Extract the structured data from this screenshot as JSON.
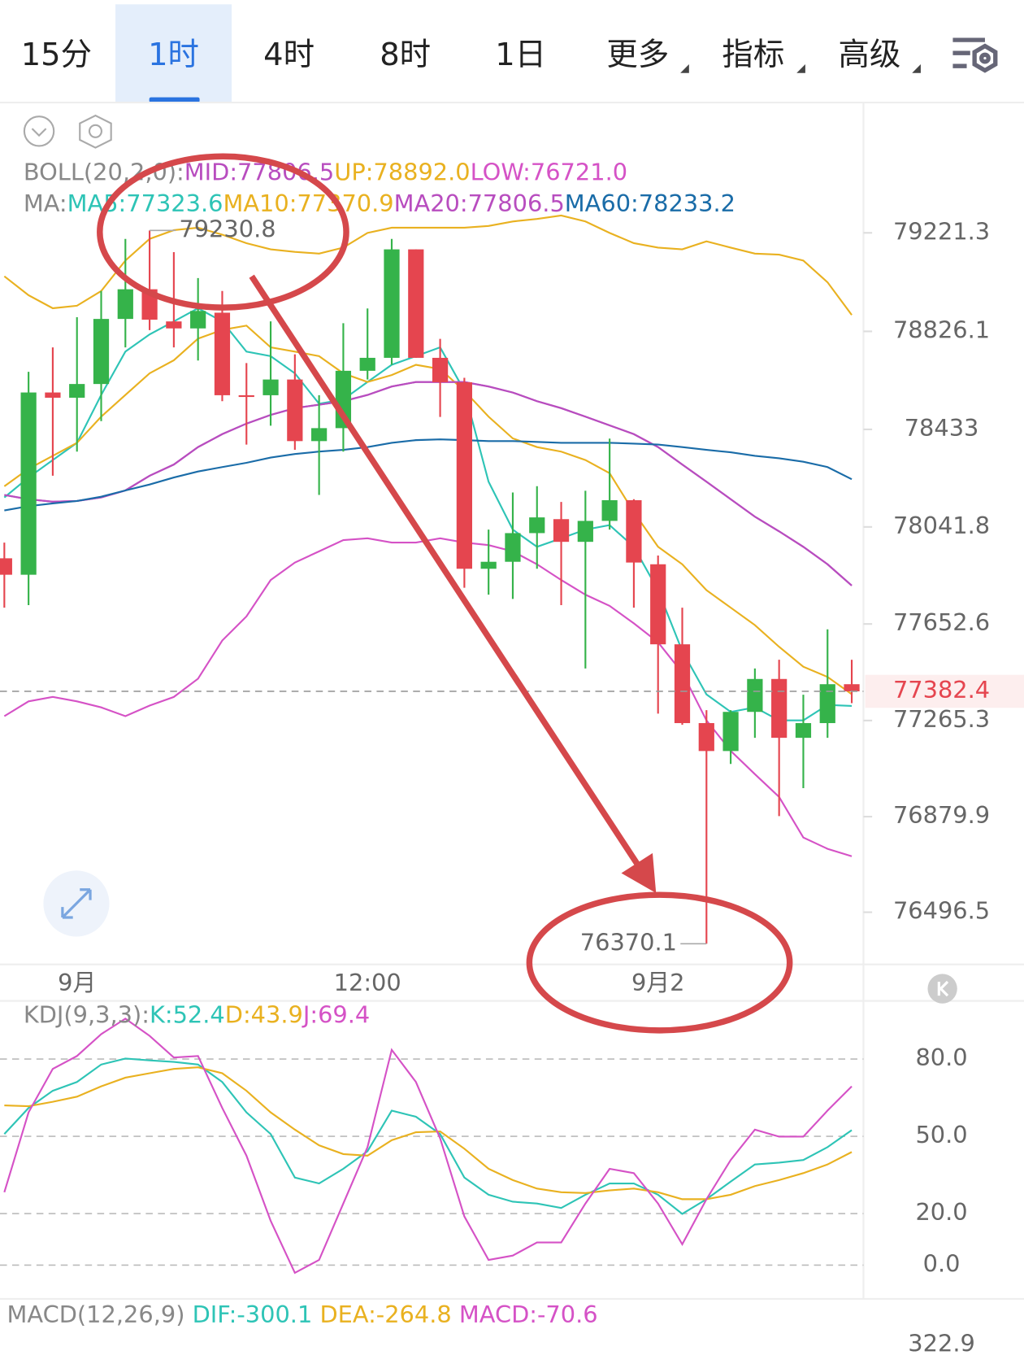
{
  "tabs": [
    "15分",
    "1时",
    "4时",
    "8时",
    "1日",
    "更多",
    "指标",
    "高级"
  ],
  "chart_data": [
    {
      "type": "candlestick",
      "boll_label": "BOLL(20,2,0):",
      "ma_label": "MA:",
      "categories": [
        null,
        null,
        null,
        "9月",
        null,
        null,
        null,
        null,
        null,
        null,
        null,
        null,
        null,
        null,
        null,
        "12:00",
        null,
        null,
        null,
        null,
        null,
        null,
        null,
        null,
        null,
        null,
        null,
        "9月2",
        null,
        null,
        null,
        null,
        null,
        null,
        null,
        null
      ],
      "open": [
        77916,
        77850,
        78581,
        78560,
        78615,
        78876,
        78995,
        78866,
        78838,
        78901,
        78570,
        78570,
        78633,
        78386,
        78438,
        78668,
        78720,
        79155,
        78720,
        78622,
        77874,
        77902,
        78017,
        78073,
        77982,
        78066,
        78149,
        77892,
        77571,
        77255,
        77143,
        77300,
        77432,
        77196,
        77255,
        77411
      ],
      "high": [
        77979,
        78664,
        78762,
        78883,
        78988,
        79197,
        79230.8,
        79144,
        79040,
        78988,
        78699,
        78866,
        78734,
        78570,
        78859,
        78918,
        79197,
        79155,
        78796,
        78640,
        78031,
        78180,
        78205,
        78142,
        78187,
        78396,
        78153,
        77927,
        77718,
        77307,
        77307,
        77474,
        77509,
        77369,
        77631,
        77509
      ],
      "low": [
        77718,
        77728,
        78247,
        78344,
        78466,
        78762,
        78831,
        78762,
        78709,
        78546,
        78372,
        78448,
        78351,
        78170,
        78344,
        78633,
        78692,
        78720,
        78483,
        77798,
        77770,
        77753,
        77874,
        77728,
        77474,
        78031,
        77718,
        77293,
        77248,
        76370.1,
        77091,
        77196,
        76882,
        76994,
        77196,
        77335
      ],
      "close": [
        77850,
        78581,
        78560,
        78615,
        78876,
        78995,
        78873,
        78838,
        78908,
        78570,
        78563,
        78633,
        78386,
        78438,
        78668,
        78720,
        79155,
        78720,
        78622,
        77874,
        77902,
        78017,
        78080,
        77982,
        78066,
        78149,
        77899,
        77571,
        77255,
        77143,
        77300,
        77432,
        77196,
        77255,
        77411,
        77382.4
      ],
      "up_color": "#35b34a",
      "down_color": "#e5454f",
      "series": [
        {
          "name": "MID:77806.5",
          "color": "#b84dbf",
          "values": [
            78170,
            78153,
            78143,
            78146,
            78160,
            78188,
            78247,
            78292,
            78362,
            78414,
            78456,
            78491,
            78518,
            78532,
            78546,
            78571,
            78605,
            78623,
            78623,
            78623,
            78605,
            78581,
            78546,
            78518,
            78484,
            78449,
            78414,
            78362,
            78292,
            78223,
            78153,
            78083,
            78024,
            77962,
            77892,
            77806.5
          ]
        },
        {
          "name": "UP:78892.0",
          "color": "#e9b120",
          "values": [
            79047,
            78971,
            78919,
            78929,
            78988,
            79110,
            79197,
            79232,
            79242,
            79214,
            79180,
            79155,
            79145,
            79138,
            79162,
            79221,
            79242,
            79242,
            79242,
            79242,
            79249,
            79267,
            79277,
            79291,
            79267,
            79221,
            79180,
            79162,
            79155,
            79187,
            79162,
            79138,
            79134,
            79110,
            79023,
            78892
          ]
        },
        {
          "name": "LOW:76721.0",
          "color": "#d552c6",
          "values": [
            77283,
            77342,
            77360,
            77342,
            77318,
            77283,
            77325,
            77360,
            77433,
            77586,
            77683,
            77829,
            77899,
            77944,
            77989,
            77996,
            77979,
            77979,
            77996,
            77979,
            77969,
            77944,
            77892,
            77829,
            77770,
            77725,
            77655,
            77579,
            77457,
            77266,
            77144,
            77050,
            76959,
            76796,
            76751,
            76721
          ]
        },
        {
          "name": "MA5:77323.6",
          "color": "#2ec4b6",
          "values": [
            78160,
            78240,
            78310,
            78379,
            78571,
            78745,
            78814,
            78866,
            78919,
            78866,
            78745,
            78727,
            78658,
            78536,
            78553,
            78623,
            78692,
            78727,
            78762,
            78588,
            78223,
            78031,
            77962,
            77996,
            78031,
            78049,
            77962,
            77788,
            77544,
            77370,
            77300,
            77318,
            77266,
            77266,
            77328,
            77323.6
          ]
        },
        {
          "name": "MA10:77370.9",
          "color": "#e9b120",
          "values": [
            78205,
            78275,
            78327,
            78379,
            78484,
            78571,
            78658,
            78710,
            78797,
            78832,
            78849,
            78762,
            78745,
            78727,
            78658,
            78623,
            78651,
            78692,
            78675,
            78588,
            78484,
            78397,
            78362,
            78344,
            78310,
            78257,
            78101,
            77962,
            77892,
            77788,
            77718,
            77648,
            77561,
            77481,
            77440,
            77370.9
          ]
        },
        {
          "name": "MA20:77806.5",
          "color": "#b84dbf",
          "values": [
            78170,
            78153,
            78143,
            78146,
            78160,
            78188,
            78247,
            78292,
            78362,
            78414,
            78456,
            78491,
            78518,
            78532,
            78546,
            78571,
            78605,
            78623,
            78623,
            78623,
            78605,
            78581,
            78546,
            78518,
            78484,
            78449,
            78414,
            78362,
            78292,
            78223,
            78153,
            78083,
            78024,
            77962,
            77892,
            77806.5
          ]
        },
        {
          "name": "MA60:78233.2",
          "color": "#1a6ca8",
          "values": [
            78108,
            78125,
            78136,
            78146,
            78163,
            78188,
            78212,
            78240,
            78264,
            78282,
            78299,
            78320,
            78334,
            78344,
            78351,
            78362,
            78379,
            78390,
            78393,
            78390,
            78386,
            78386,
            78383,
            78379,
            78379,
            78379,
            78376,
            78372,
            78362,
            78351,
            78341,
            78327,
            78317,
            78303,
            78282,
            78233.2
          ]
        }
      ],
      "ylim": [
        76287.4,
        79737.0
      ],
      "yticks": [
        79221.3,
        78826.1,
        78433.0,
        78041.8,
        77652.6,
        77265.3,
        76879.9,
        76496.5
      ]
    },
    {
      "type": "line",
      "label": "KDJ(9,3,3):",
      "series": [
        {
          "name": "K:52.4",
          "color": "#2ec4b6",
          "values": [
            50.9,
            61.0,
            67.7,
            71.1,
            77.9,
            80.2,
            79.5,
            78.9,
            77.9,
            71.1,
            59.3,
            50.9,
            34.0,
            31.7,
            37.4,
            44.2,
            60.0,
            57.6,
            50.9,
            34.0,
            27.3,
            24.6,
            23.9,
            22.2,
            27.3,
            31.7,
            31.7,
            27.3,
            19.9,
            25.6,
            32.4,
            39.1,
            39.8,
            40.8,
            45.8,
            52.4
          ]
        },
        {
          "name": "D:43.9",
          "color": "#e9b120",
          "values": [
            62.0,
            61.7,
            63.4,
            65.4,
            69.4,
            72.8,
            74.5,
            76.2,
            76.8,
            74.5,
            67.7,
            59.3,
            52.6,
            46.5,
            43.1,
            42.5,
            48.5,
            51.6,
            51.9,
            45.2,
            37.4,
            33.0,
            29.7,
            28.3,
            28.0,
            29.0,
            29.7,
            28.3,
            25.6,
            25.6,
            27.3,
            30.7,
            33.0,
            35.7,
            39.1,
            43.9
          ]
        },
        {
          "name": "J:69.4",
          "color": "#d552c6",
          "values": [
            28.3,
            59.3,
            76.2,
            81.2,
            89.7,
            95.7,
            89.0,
            80.6,
            81.2,
            61.0,
            42.5,
            17.2,
            -3.0,
            2.0,
            23.9,
            45.8,
            83.6,
            71.1,
            49.2,
            18.9,
            2.0,
            3.7,
            8.8,
            8.8,
            23.9,
            37.4,
            35.7,
            23.9,
            8.1,
            25.6,
            40.8,
            52.6,
            49.9,
            49.9,
            60.0,
            69.4
          ]
        }
      ],
      "ylim": [
        -13.1,
        101.6
      ],
      "yticks": [
        {
          "value": 80,
          "label": "80.0"
        },
        {
          "value": 50,
          "label": "50.0"
        },
        {
          "value": 20,
          "label": "20.0"
        },
        {
          "value": 0,
          "label": "0.0"
        }
      ]
    }
  ],
  "macd": {
    "label": "MACD(12,26,9)",
    "dif": "DIF:-300.1",
    "dea": "DEA:-264.8",
    "macd": "MACD:-70.6",
    "ytick": "322.9"
  }
}
